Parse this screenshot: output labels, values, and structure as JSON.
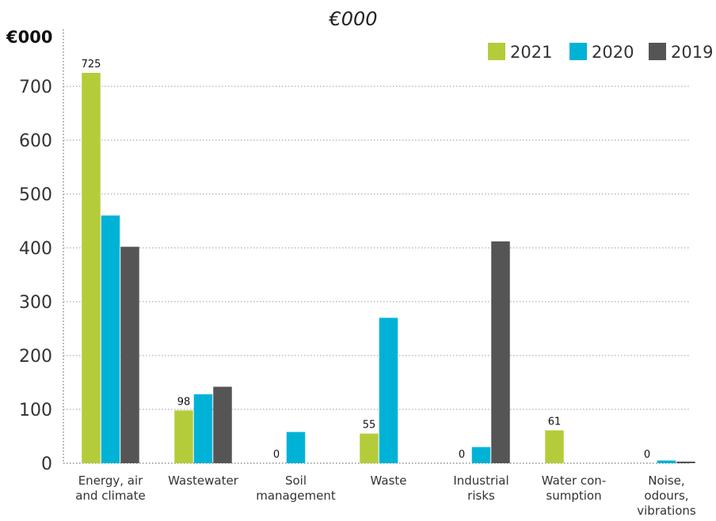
{
  "chart_data": {
    "type": "bar",
    "title": "€000",
    "ylabel": "€000",
    "xlabel": "",
    "ylim": [
      0,
      725
    ],
    "yticks": [
      0,
      100,
      200,
      300,
      400,
      500,
      600,
      700
    ],
    "grid": true,
    "legend_position": "top-right",
    "categories": [
      [
        "Energy, air",
        "and climate"
      ],
      [
        "Wastewater"
      ],
      [
        "Soil",
        "management"
      ],
      [
        "Waste"
      ],
      [
        "Industrial",
        "risks"
      ],
      [
        "Water con-",
        "sumption"
      ],
      [
        "Noise,",
        "odours,",
        "vibrations"
      ]
    ],
    "series": [
      {
        "name": "2021",
        "color": "#b5cc3a",
        "values": [
          725,
          98,
          0,
          55,
          0,
          61,
          0
        ]
      },
      {
        "name": "2020",
        "color": "#00b3d6",
        "values": [
          460,
          128,
          58,
          270,
          30,
          null,
          5
        ]
      },
      {
        "name": "2019",
        "color": "#555555",
        "values": [
          402,
          142,
          null,
          null,
          412,
          null,
          3
        ]
      }
    ],
    "data_labels": [
      {
        "category": 0,
        "series": 0,
        "text": "725"
      },
      {
        "category": 1,
        "series": 0,
        "text": "98"
      },
      {
        "category": 2,
        "series": 0,
        "text": "0"
      },
      {
        "category": 3,
        "series": 0,
        "text": "55"
      },
      {
        "category": 4,
        "series": 0,
        "text": "0"
      },
      {
        "category": 5,
        "series": 0,
        "text": "61"
      },
      {
        "category": 6,
        "series": 0,
        "text": "0"
      }
    ]
  }
}
